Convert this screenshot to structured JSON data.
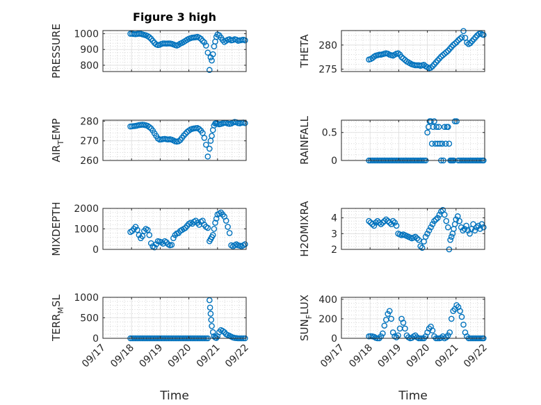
{
  "figure_title": "Figure 3 high",
  "marker_color": "#0072BD",
  "chart_data": [
    {
      "type": "scatter",
      "ylabel": "PRESSURE",
      "ylim": [
        760,
        1020
      ],
      "yticks": [
        800,
        900,
        1000
      ],
      "xlim": [
        0,
        5
      ],
      "xticks": [
        "09/17",
        "09/18",
        "09/19",
        "09/20",
        "09/21",
        "09/22"
      ],
      "grid": true,
      "x": [
        0.96,
        1.02,
        1.08,
        1.14,
        1.2,
        1.26,
        1.32,
        1.38,
        1.44,
        1.5,
        1.56,
        1.62,
        1.68,
        1.74,
        1.8,
        1.86,
        1.92,
        1.98,
        2.04,
        2.1,
        2.16,
        2.22,
        2.28,
        2.34,
        2.4,
        2.46,
        2.52,
        2.58,
        2.64,
        2.7,
        2.76,
        2.82,
        2.88,
        2.94,
        3.0,
        3.06,
        3.12,
        3.18,
        3.24,
        3.3,
        3.36,
        3.42,
        3.48,
        3.54,
        3.6,
        3.66,
        3.72,
        3.76,
        3.8,
        3.84,
        3.88,
        3.92,
        3.96,
        4.0,
        4.06,
        4.12,
        4.18,
        4.24,
        4.3,
        4.36,
        4.42,
        4.48,
        4.54,
        4.6,
        4.66,
        4.72,
        4.78,
        4.84,
        4.9,
        4.96
      ],
      "y": [
        1000,
        1000,
        998,
        997,
        999,
        1000,
        1000,
        996,
        993,
        990,
        985,
        978,
        968,
        955,
        942,
        932,
        928,
        930,
        935,
        938,
        938,
        937,
        938,
        938,
        936,
        932,
        928,
        925,
        930,
        937,
        942,
        948,
        955,
        962,
        968,
        972,
        975,
        976,
        978,
        980,
        975,
        968,
        955,
        945,
        925,
        880,
        770,
        850,
        830,
        870,
        920,
        950,
        980,
        995,
        990,
        975,
        960,
        948,
        955,
        962,
        965,
        958,
        960,
        965,
        962,
        955,
        958,
        960,
        962,
        958
      ]
    },
    {
      "type": "scatter",
      "ylabel": "THETA",
      "ylim": [
        274.5,
        283
      ],
      "yticks": [
        275,
        280
      ],
      "xlim": [
        0,
        5
      ],
      "xticks": [
        "09/17",
        "09/18",
        "09/19",
        "09/20",
        "09/21",
        "09/22"
      ],
      "grid": true,
      "x": [
        0.96,
        1.02,
        1.08,
        1.14,
        1.2,
        1.26,
        1.32,
        1.38,
        1.44,
        1.5,
        1.56,
        1.62,
        1.68,
        1.74,
        1.8,
        1.86,
        1.92,
        1.98,
        2.04,
        2.1,
        2.16,
        2.22,
        2.28,
        2.34,
        2.4,
        2.46,
        2.52,
        2.58,
        2.64,
        2.7,
        2.76,
        2.82,
        2.88,
        2.94,
        3.0,
        3.06,
        3.12,
        3.18,
        3.24,
        3.3,
        3.36,
        3.42,
        3.48,
        3.54,
        3.6,
        3.66,
        3.72,
        3.78,
        3.84,
        3.9,
        3.96,
        4.02,
        4.08,
        4.14,
        4.2,
        4.26,
        4.32,
        4.38,
        4.44,
        4.5,
        4.56,
        4.62,
        4.68,
        4.74,
        4.8,
        4.86,
        4.92,
        4.96
      ],
      "y": [
        277,
        277.1,
        277.3,
        277.6,
        277.8,
        277.9,
        278,
        278,
        278.1,
        278.2,
        278.3,
        278.2,
        278,
        277.9,
        277.8,
        278,
        278.2,
        278.3,
        278,
        277.5,
        277.2,
        276.9,
        276.6,
        276.4,
        276.2,
        276,
        275.9,
        275.8,
        275.8,
        275.8,
        275.7,
        275.8,
        275.9,
        275.6,
        275.4,
        275.2,
        275.3,
        275.6,
        276,
        276.4,
        276.8,
        277.2,
        277.6,
        277.9,
        278.2,
        278.5,
        278.8,
        279.2,
        279.6,
        280,
        280.3,
        280.6,
        281,
        281.3,
        281.6,
        282.9,
        281.5,
        280.5,
        280.2,
        280.4,
        280.8,
        281.2,
        281.6,
        282,
        282.3,
        282.4,
        282.2,
        282.1
      ]
    },
    {
      "type": "scatter",
      "ylabel": "AIR_TEMP",
      "ylim": [
        260,
        280.5
      ],
      "yticks": [
        260,
        270,
        280
      ],
      "xlim": [
        0,
        5
      ],
      "xticks": [
        "09/17",
        "09/18",
        "09/19",
        "09/20",
        "09/21",
        "09/22"
      ],
      "grid": true,
      "x": [
        0.96,
        1.02,
        1.08,
        1.14,
        1.2,
        1.26,
        1.32,
        1.38,
        1.44,
        1.5,
        1.56,
        1.62,
        1.68,
        1.74,
        1.8,
        1.86,
        1.92,
        1.98,
        2.04,
        2.1,
        2.16,
        2.22,
        2.28,
        2.34,
        2.4,
        2.46,
        2.52,
        2.58,
        2.64,
        2.7,
        2.76,
        2.82,
        2.88,
        2.94,
        3.0,
        3.06,
        3.12,
        3.18,
        3.24,
        3.3,
        3.36,
        3.42,
        3.48,
        3.54,
        3.6,
        3.66,
        3.72,
        3.76,
        3.8,
        3.84,
        3.88,
        3.92,
        3.96,
        4.0,
        4.06,
        4.12,
        4.18,
        4.24,
        4.3,
        4.36,
        4.42,
        4.48,
        4.54,
        4.6,
        4.66,
        4.72,
        4.78,
        4.84,
        4.9,
        4.96
      ],
      "y": [
        277.3,
        277.4,
        277.5,
        277.6,
        277.8,
        278,
        278.1,
        278.2,
        278.1,
        277.9,
        277.6,
        277,
        276.3,
        275.2,
        273.8,
        272.5,
        271.2,
        270.6,
        270.7,
        270.9,
        271,
        270.8,
        270.7,
        270.8,
        270.6,
        270.2,
        269.8,
        269.6,
        269.8,
        270.4,
        271.5,
        272.6,
        273.6,
        274.5,
        275.2,
        275.8,
        276.1,
        276.3,
        276.4,
        276.5,
        276,
        275.2,
        274,
        271.5,
        268,
        262,
        266,
        270,
        272.5,
        275.5,
        277.8,
        278.8,
        279,
        278.7,
        278.4,
        278.6,
        278.9,
        279.2,
        279.1,
        278.8,
        278.6,
        278.8,
        279.3,
        279.6,
        279.4,
        279,
        278.9,
        279.2,
        279.3,
        279
      ]
    },
    {
      "type": "scatter",
      "ylabel": "RAINFALL",
      "ylim": [
        0,
        0.72
      ],
      "yticks": [
        0,
        0.5
      ],
      "xlim": [
        0,
        5
      ],
      "xticks": [
        "09/17",
        "09/18",
        "09/19",
        "09/20",
        "09/21",
        "09/22"
      ],
      "grid": true,
      "x": [
        0.96,
        1.02,
        1.08,
        1.14,
        1.2,
        1.26,
        1.32,
        1.38,
        1.44,
        1.5,
        1.56,
        1.62,
        1.68,
        1.74,
        1.8,
        1.86,
        1.92,
        1.98,
        2.04,
        2.1,
        2.16,
        2.22,
        2.28,
        2.34,
        2.4,
        2.46,
        2.52,
        2.58,
        2.64,
        2.7,
        2.76,
        2.82,
        2.88,
        2.94,
        3.0,
        3.04,
        3.08,
        3.12,
        3.16,
        3.2,
        3.24,
        3.28,
        3.32,
        3.36,
        3.4,
        3.44,
        3.48,
        3.52,
        3.56,
        3.6,
        3.64,
        3.68,
        3.72,
        3.76,
        3.8,
        3.84,
        3.88,
        3.92,
        3.96,
        4.02,
        4.08,
        4.14,
        4.2,
        4.26,
        4.32,
        4.38,
        4.44,
        4.5,
        4.56,
        4.62,
        4.68,
        4.74,
        4.8,
        4.86,
        4.92,
        4.96
      ],
      "y": [
        0,
        0,
        0,
        0,
        0,
        0,
        0,
        0,
        0,
        0,
        0,
        0,
        0,
        0,
        0,
        0,
        0,
        0,
        0,
        0,
        0,
        0,
        0,
        0,
        0,
        0,
        0,
        0,
        0,
        0,
        0,
        0,
        0,
        0,
        0.5,
        0.6,
        0.7,
        0.7,
        0.3,
        0.6,
        0.7,
        0.3,
        0.6,
        0.3,
        0.6,
        0.3,
        0,
        0.3,
        0,
        0.6,
        0.3,
        0.6,
        0.6,
        0.3,
        0,
        0,
        0,
        0,
        0.7,
        0.7,
        0,
        0,
        0,
        0,
        0,
        0,
        0,
        0,
        0,
        0,
        0,
        0,
        0,
        0,
        0,
        0
      ]
    },
    {
      "type": "scatter",
      "ylabel": "MIXDEPTH",
      "ylim": [
        0,
        2000
      ],
      "yticks": [
        0,
        1000,
        2000
      ],
      "xlim": [
        0,
        5
      ],
      "xticks": [
        "09/17",
        "09/18",
        "09/19",
        "09/20",
        "09/21",
        "09/22"
      ],
      "grid": true,
      "x": [
        0.96,
        1.02,
        1.08,
        1.14,
        1.2,
        1.26,
        1.32,
        1.38,
        1.44,
        1.5,
        1.56,
        1.62,
        1.68,
        1.74,
        1.8,
        1.86,
        1.92,
        1.98,
        2.04,
        2.1,
        2.16,
        2.22,
        2.28,
        2.34,
        2.4,
        2.46,
        2.52,
        2.58,
        2.64,
        2.7,
        2.76,
        2.82,
        2.88,
        2.94,
        3.0,
        3.06,
        3.12,
        3.18,
        3.24,
        3.3,
        3.36,
        3.42,
        3.48,
        3.54,
        3.6,
        3.66,
        3.72,
        3.76,
        3.8,
        3.84,
        3.88,
        3.92,
        3.96,
        4.0,
        4.06,
        4.12,
        4.18,
        4.24,
        4.3,
        4.36,
        4.42,
        4.48,
        4.54,
        4.6,
        4.66,
        4.72,
        4.78,
        4.84,
        4.9,
        4.96
      ],
      "y": [
        850,
        900,
        1000,
        1100,
        950,
        700,
        550,
        650,
        900,
        1000,
        950,
        700,
        300,
        150,
        100,
        250,
        400,
        380,
        350,
        280,
        400,
        350,
        250,
        200,
        220,
        550,
        700,
        780,
        800,
        900,
        950,
        1000,
        1050,
        1150,
        1250,
        1300,
        1250,
        1350,
        1400,
        1300,
        1200,
        1350,
        1400,
        1200,
        1100,
        1050,
        400,
        500,
        600,
        700,
        1000,
        1300,
        1500,
        1700,
        1750,
        1800,
        1700,
        1600,
        1400,
        1100,
        800,
        200,
        150,
        200,
        250,
        200,
        180,
        150,
        200,
        250
      ]
    },
    {
      "type": "scatter",
      "ylabel": "H2OMIXRA",
      "ylim": [
        2,
        4.6
      ],
      "yticks": [
        2,
        3,
        4
      ],
      "xlim": [
        0,
        5
      ],
      "xticks": [
        "09/17",
        "09/18",
        "09/19",
        "09/20",
        "09/21",
        "09/22"
      ],
      "grid": true,
      "x": [
        0.96,
        1.02,
        1.08,
        1.14,
        1.2,
        1.26,
        1.32,
        1.38,
        1.44,
        1.5,
        1.56,
        1.62,
        1.68,
        1.74,
        1.8,
        1.86,
        1.92,
        1.98,
        2.04,
        2.1,
        2.16,
        2.22,
        2.28,
        2.34,
        2.4,
        2.46,
        2.52,
        2.58,
        2.64,
        2.7,
        2.76,
        2.82,
        2.88,
        2.94,
        3.0,
        3.06,
        3.12,
        3.18,
        3.24,
        3.3,
        3.36,
        3.42,
        3.48,
        3.54,
        3.6,
        3.66,
        3.72,
        3.76,
        3.8,
        3.84,
        3.88,
        3.92,
        3.96,
        4.0,
        4.06,
        4.12,
        4.18,
        4.24,
        4.3,
        4.36,
        4.42,
        4.48,
        4.54,
        4.6,
        4.66,
        4.72,
        4.78,
        4.84,
        4.9,
        4.96
      ],
      "y": [
        3.8,
        3.7,
        3.6,
        3.5,
        3.7,
        3.8,
        3.7,
        3.6,
        3.7,
        3.8,
        3.9,
        3.8,
        3.7,
        3.6,
        3.8,
        3.7,
        3.5,
        3.0,
        2.95,
        2.9,
        2.95,
        2.9,
        2.85,
        2.8,
        2.75,
        2.7,
        2.75,
        2.8,
        2.7,
        2.6,
        2.2,
        2.1,
        2.5,
        2.8,
        3.0,
        3.2,
        3.4,
        3.6,
        3.8,
        3.9,
        4.0,
        4.2,
        4.4,
        4.5,
        4.2,
        3.8,
        3.4,
        2.0,
        2.6,
        2.8,
        3.0,
        3.3,
        3.6,
        3.9,
        4.1,
        3.8,
        3.4,
        3.2,
        3.3,
        3.5,
        3.2,
        3.0,
        3.3,
        3.6,
        3.2,
        3.4,
        3.5,
        3.3,
        3.6,
        3.4
      ]
    },
    {
      "type": "scatter",
      "ylabel": "TERR_MSL",
      "ylim": [
        0,
        1000
      ],
      "yticks": [
        0,
        500,
        1000
      ],
      "xlim": [
        0,
        5
      ],
      "xticks": [
        "09/17",
        "09/18",
        "09/19",
        "09/20",
        "09/21",
        "09/22"
      ],
      "grid": true,
      "x": [
        0.96,
        1.02,
        1.08,
        1.14,
        1.2,
        1.26,
        1.32,
        1.38,
        1.44,
        1.5,
        1.56,
        1.62,
        1.68,
        1.74,
        1.8,
        1.86,
        1.92,
        1.98,
        2.04,
        2.1,
        2.16,
        2.22,
        2.28,
        2.34,
        2.4,
        2.46,
        2.52,
        2.58,
        2.64,
        2.7,
        2.76,
        2.82,
        2.88,
        2.94,
        3.0,
        3.06,
        3.12,
        3.18,
        3.24,
        3.3,
        3.36,
        3.42,
        3.48,
        3.54,
        3.6,
        3.66,
        3.72,
        3.74,
        3.76,
        3.78,
        3.8,
        3.84,
        3.88,
        3.92,
        3.96,
        4.0,
        4.06,
        4.12,
        4.18,
        4.24,
        4.3,
        4.36,
        4.42,
        4.48,
        4.54,
        4.6,
        4.66,
        4.72,
        4.78,
        4.84,
        4.9,
        4.96
      ],
      "y": [
        0,
        0,
        0,
        0,
        0,
        0,
        0,
        0,
        0,
        0,
        0,
        0,
        0,
        0,
        0,
        0,
        0,
        0,
        0,
        0,
        0,
        0,
        0,
        0,
        0,
        0,
        0,
        0,
        0,
        0,
        0,
        0,
        0,
        0,
        0,
        0,
        0,
        0,
        0,
        0,
        0,
        0,
        0,
        0,
        0,
        0,
        930,
        750,
        600,
        450,
        300,
        150,
        50,
        20,
        10,
        50,
        150,
        200,
        180,
        150,
        100,
        80,
        60,
        40,
        20,
        10,
        5,
        0,
        0,
        0,
        0,
        0
      ]
    },
    {
      "type": "scatter",
      "ylabel": "SUN_FLUX",
      "ylim": [
        0,
        420
      ],
      "yticks": [
        0,
        200,
        400
      ],
      "xlim": [
        0,
        5
      ],
      "xticks": [
        "09/17",
        "09/18",
        "09/19",
        "09/20",
        "09/21",
        "09/22"
      ],
      "grid": true,
      "x": [
        0.96,
        1.02,
        1.08,
        1.14,
        1.2,
        1.26,
        1.32,
        1.38,
        1.44,
        1.5,
        1.56,
        1.62,
        1.68,
        1.74,
        1.8,
        1.86,
        1.92,
        1.98,
        2.04,
        2.1,
        2.16,
        2.22,
        2.28,
        2.34,
        2.4,
        2.46,
        2.52,
        2.58,
        2.64,
        2.7,
        2.76,
        2.82,
        2.88,
        2.94,
        3.0,
        3.06,
        3.12,
        3.18,
        3.24,
        3.3,
        3.36,
        3.42,
        3.48,
        3.54,
        3.6,
        3.66,
        3.72,
        3.78,
        3.84,
        3.9,
        3.96,
        4.02,
        4.08,
        4.14,
        4.2,
        4.26,
        4.32,
        4.38,
        4.44,
        4.5,
        4.56,
        4.62,
        4.68,
        4.74,
        4.8,
        4.86,
        4.92,
        4.96
      ],
      "y": [
        20,
        22,
        20,
        15,
        5,
        0,
        0,
        20,
        50,
        130,
        190,
        250,
        280,
        200,
        60,
        20,
        10,
        30,
        100,
        200,
        160,
        100,
        30,
        10,
        0,
        5,
        20,
        30,
        10,
        0,
        0,
        0,
        0,
        20,
        60,
        100,
        120,
        80,
        20,
        0,
        0,
        0,
        5,
        20,
        0,
        10,
        30,
        60,
        200,
        280,
        300,
        340,
        320,
        280,
        220,
        140,
        60,
        20,
        0,
        0,
        0,
        0,
        0,
        0,
        0,
        0,
        0,
        0
      ]
    }
  ],
  "x_axis_label": "Time"
}
